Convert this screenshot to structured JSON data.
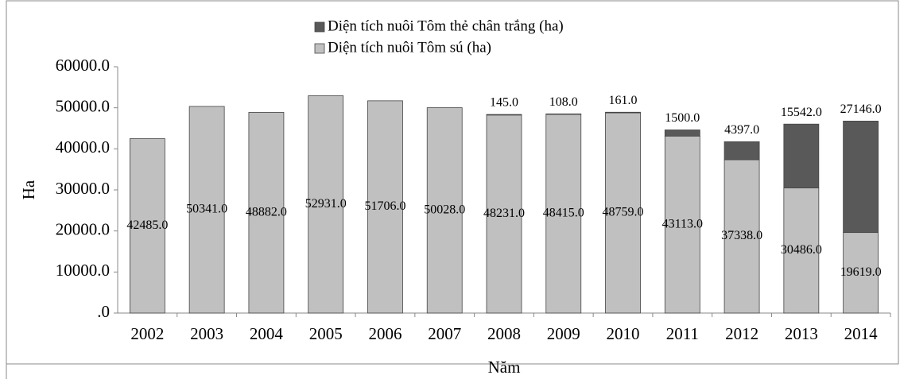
{
  "chart_data": {
    "type": "stacked_bar",
    "x_label": "Năm",
    "y_label": "Ha",
    "categories": [
      "2002",
      "2003",
      "2004",
      "2005",
      "2006",
      "2007",
      "2008",
      "2009",
      "2010",
      "2011",
      "2012",
      "2013",
      "2014"
    ],
    "series": [
      {
        "name": "Diện tích nuôi Tôm sú (ha)",
        "color": "#c0c0c0",
        "values": [
          42485,
          50341,
          48882,
          52931,
          51706,
          50028,
          48231,
          48415,
          48759,
          43113,
          37338,
          30486,
          19619
        ],
        "value_labels": [
          "42485.0",
          "50341.0",
          "48882.0",
          "52931.0",
          "51706.0",
          "50028.0",
          "48231.0",
          "48415.0",
          "48759.0",
          "43113.0",
          "37338.0",
          "30486.0",
          "19619.0"
        ]
      },
      {
        "name": "Diện tích nuôi Tôm thẻ chân trắng (ha)",
        "color": "#595959",
        "values": [
          null,
          null,
          null,
          null,
          null,
          null,
          145,
          108,
          161,
          1500,
          4397,
          15542,
          27146
        ],
        "value_labels": [
          null,
          null,
          null,
          null,
          null,
          null,
          "145.0",
          "108.0",
          "161.0",
          "1500.0",
          "4397.0",
          "15542.0",
          "27146.0"
        ]
      }
    ],
    "ylim": [
      0,
      60000
    ],
    "yticks": [
      {
        "value": 0,
        "label": ".0"
      },
      {
        "value": 10000,
        "label": "10000.0"
      },
      {
        "value": 20000,
        "label": "20000.0"
      },
      {
        "value": 30000,
        "label": "30000.0"
      },
      {
        "value": 40000,
        "label": "40000.0"
      },
      {
        "value": 50000,
        "label": "50000.0"
      },
      {
        "value": 60000,
        "label": "60000.0"
      }
    ],
    "legend": "top"
  }
}
